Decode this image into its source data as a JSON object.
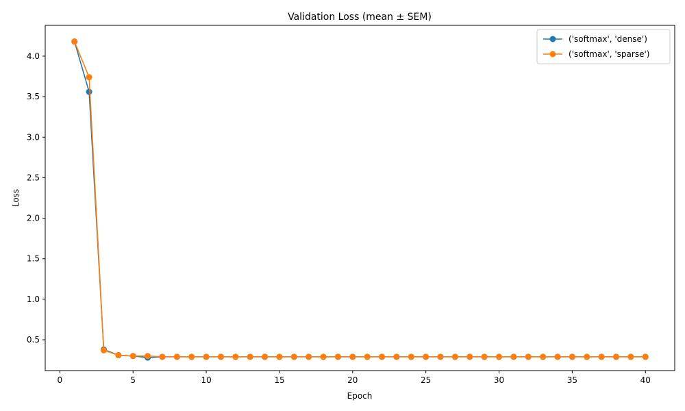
{
  "chart_data": {
    "type": "line",
    "title": "Validation Loss (mean ± SEM)",
    "xlabel": "Epoch",
    "ylabel": "Loss",
    "xlim": [
      -1,
      42
    ],
    "ylim": [
      0.12,
      4.38
    ],
    "xticks": [
      0,
      5,
      10,
      15,
      20,
      25,
      30,
      35,
      40
    ],
    "yticks": [
      0.5,
      1.0,
      1.5,
      2.0,
      2.5,
      3.0,
      3.5,
      4.0
    ],
    "ytick_labels": [
      "0.5",
      "1.0",
      "1.5",
      "2.0",
      "2.5",
      "3.0",
      "3.5",
      "4.0"
    ],
    "grid": false,
    "legend_position": "top-right",
    "x": [
      1,
      2,
      3,
      4,
      5,
      6,
      7,
      8,
      9,
      10,
      11,
      12,
      13,
      14,
      15,
      16,
      17,
      18,
      19,
      20,
      21,
      22,
      23,
      24,
      25,
      26,
      27,
      28,
      29,
      30,
      31,
      32,
      33,
      34,
      35,
      36,
      37,
      38,
      39,
      40
    ],
    "series": [
      {
        "name": "('softmax', 'dense')",
        "color": "#1f77b4",
        "values": [
          4.18,
          3.56,
          0.38,
          0.31,
          0.3,
          0.28,
          0.29,
          0.29,
          0.29,
          0.29,
          0.29,
          0.29,
          0.29,
          0.29,
          0.29,
          0.29,
          0.29,
          0.29,
          0.29,
          0.29,
          0.29,
          0.29,
          0.29,
          0.29,
          0.29,
          0.29,
          0.29,
          0.29,
          0.29,
          0.29,
          0.29,
          0.29,
          0.29,
          0.29,
          0.29,
          0.29,
          0.29,
          0.29,
          0.29,
          0.29
        ]
      },
      {
        "name": "('softmax', 'sparse')",
        "color": "#ff7f0e",
        "values": [
          4.18,
          3.74,
          0.37,
          0.31,
          0.3,
          0.3,
          0.29,
          0.29,
          0.29,
          0.29,
          0.29,
          0.29,
          0.29,
          0.29,
          0.29,
          0.29,
          0.29,
          0.29,
          0.29,
          0.29,
          0.29,
          0.29,
          0.29,
          0.29,
          0.29,
          0.29,
          0.29,
          0.29,
          0.29,
          0.29,
          0.29,
          0.29,
          0.29,
          0.29,
          0.29,
          0.29,
          0.29,
          0.29,
          0.29,
          0.29
        ]
      }
    ]
  }
}
